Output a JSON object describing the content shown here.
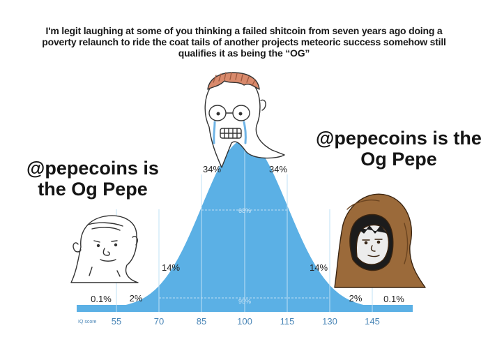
{
  "caption": "I'm legit laughing at some of you thinking a failed shitcoin from seven years ago doing a poverty relaunch to ride the coat tails of another projects meteoric success somehow still qualifies it as being the “OG”",
  "left_label": "@pepecoins is the Og Pepe",
  "right_label": "@pepecoins is the Og Pepe",
  "curve": {
    "color": "#5bb0e5",
    "axis_color": "#a8d5f2",
    "text_color": "#4a86b7",
    "axis_title": "IQ score",
    "ticks": [
      "55",
      "70",
      "85",
      "100",
      "115",
      "130",
      "145"
    ],
    "percents": {
      "far_left": "0.1%",
      "left_tail": "2%",
      "left_mid": "14%",
      "left_center": "34%",
      "right_center": "34%",
      "right_mid": "14%",
      "right_tail": "2%",
      "far_right": "0.1%"
    },
    "inner_labels": {
      "one_sd": "68%",
      "two_sd": "95%"
    }
  },
  "characters": {
    "left": "bald-wojak-simpleton",
    "center": "crying-nerd-wojak",
    "right": "hooded-monk-wojak"
  }
}
